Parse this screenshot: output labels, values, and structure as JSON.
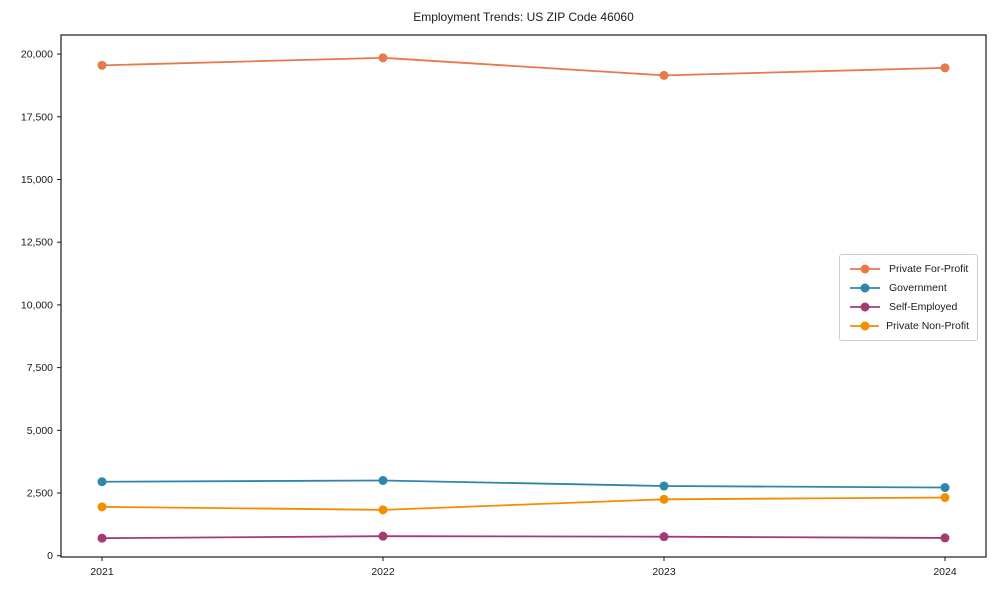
{
  "chart_data": {
    "type": "line",
    "title": "Employment Trends: US ZIP Code 46060",
    "xlabel": "",
    "ylabel": "",
    "x": [
      2021,
      2022,
      2023,
      2024
    ],
    "x_tick_labels": [
      "2021",
      "2022",
      "2023",
      "2024"
    ],
    "series": [
      {
        "name": "Private For-Profit",
        "color": "#E8794A",
        "values": [
          19550,
          19850,
          19150,
          19450
        ]
      },
      {
        "name": "Government",
        "color": "#2E86AB",
        "values": [
          2950,
          3000,
          2780,
          2720
        ]
      },
      {
        "name": "Self-Employed",
        "color": "#A23B72",
        "values": [
          700,
          780,
          760,
          710
        ]
      },
      {
        "name": "Private Non-Profit",
        "color": "#F18F01",
        "values": [
          1950,
          1830,
          2250,
          2320
        ]
      }
    ],
    "yticks": [
      0,
      2500,
      5000,
      7500,
      10000,
      12500,
      15000,
      17500,
      20000
    ],
    "ytick_labels": [
      "0",
      "2,500",
      "5,000",
      "7,500",
      "10,000",
      "12,500",
      "15,000",
      "17,500",
      "20,000"
    ],
    "ylim": [
      -50,
      20760
    ],
    "grid": false,
    "legend_position": "center-right",
    "marker": "circle",
    "background_color": "#ffffff",
    "axis_color": "#1a1a1a"
  }
}
